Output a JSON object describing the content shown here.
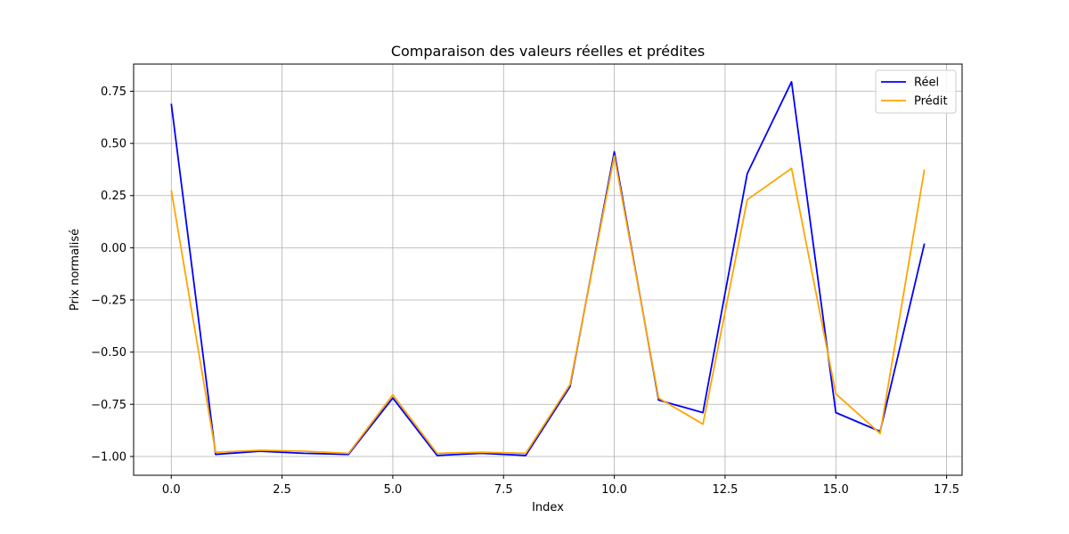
{
  "chart_data": {
    "type": "line",
    "title": "Comparaison des valeurs réelles et prédites",
    "xlabel": "Index",
    "ylabel": "Prix normalisé",
    "x": [
      0,
      1,
      2,
      3,
      4,
      5,
      6,
      7,
      8,
      9,
      10,
      11,
      12,
      13,
      14,
      15,
      16,
      17
    ],
    "xlim": [
      -0.85,
      17.85
    ],
    "ylim": [
      -1.09,
      0.88
    ],
    "xticks": [
      0,
      2.5,
      5,
      7.5,
      10,
      12.5,
      15,
      17.5
    ],
    "xtick_labels": [
      "0.0",
      "2.5",
      "5.0",
      "7.5",
      "10.0",
      "12.5",
      "15.0",
      "17.5"
    ],
    "yticks": [
      -1.0,
      -0.75,
      -0.5,
      -0.25,
      0.0,
      0.25,
      0.5,
      0.75
    ],
    "ytick_labels": [
      "−1.00",
      "−0.75",
      "−0.50",
      "−0.25",
      "0.00",
      "0.25",
      "0.50",
      "0.75"
    ],
    "grid": true,
    "legend_position": "top-right",
    "series": [
      {
        "name": "Réel",
        "color": "#0000ff",
        "values": [
          0.69,
          -0.99,
          -0.975,
          -0.985,
          -0.99,
          -0.72,
          -0.995,
          -0.985,
          -0.995,
          -0.665,
          0.46,
          -0.73,
          -0.79,
          0.355,
          0.795,
          -0.79,
          -0.88,
          0.02
        ]
      },
      {
        "name": "Prédit",
        "color": "#ffa500",
        "values": [
          0.275,
          -0.98,
          -0.97,
          -0.975,
          -0.985,
          -0.705,
          -0.985,
          -0.98,
          -0.985,
          -0.655,
          0.44,
          -0.72,
          -0.845,
          0.23,
          0.38,
          -0.7,
          -0.89,
          0.375
        ]
      }
    ]
  }
}
